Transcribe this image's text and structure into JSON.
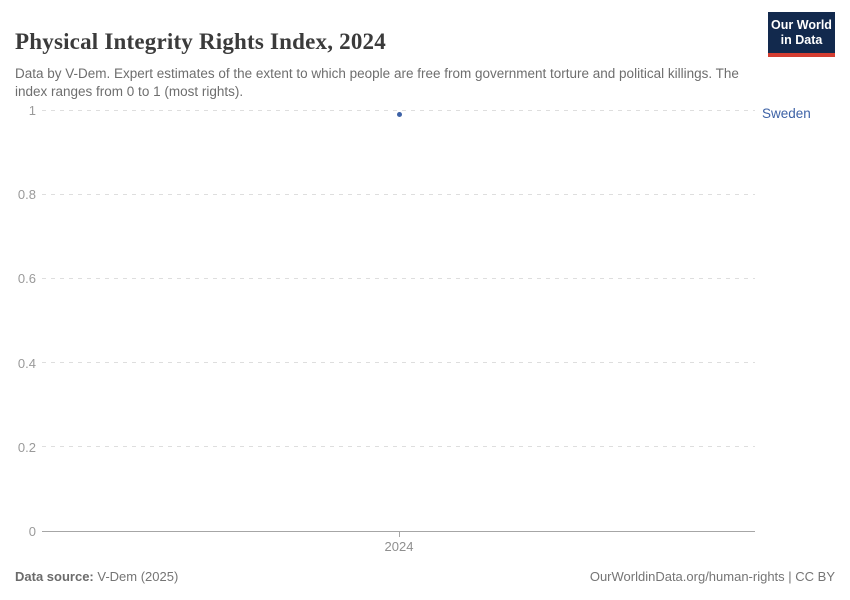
{
  "header": {
    "title": "Physical Integrity Rights Index, 2024",
    "subtitle": "Data by V-Dem. Expert estimates of the extent to which people are free from government torture and political killings. The index ranges from 0 to 1 (most rights).",
    "logo": {
      "line1": "Our World",
      "line2": "in Data",
      "bg_color": "#12294d",
      "accent_color": "#d43d31"
    }
  },
  "chart_data": {
    "type": "scatter",
    "title": "Physical Integrity Rights Index, 2024",
    "series": [
      {
        "name": "Sweden",
        "x": [
          2024
        ],
        "values": [
          0.99
        ],
        "color": "#3d62a6"
      }
    ],
    "x_ticks": [
      "2024"
    ],
    "y_ticks": [
      0,
      0.2,
      0.4,
      0.6,
      0.8,
      1
    ],
    "y_tick_labels": [
      "0",
      "0.2",
      "0.4",
      "0.6",
      "0.8",
      "1"
    ],
    "ylim": [
      0,
      1
    ],
    "xlabel": "",
    "ylabel": "",
    "grid": "horizontal-dashed",
    "legend_position": "right-entity-label",
    "colors": {
      "accent": "#3d62a6",
      "gridline": "#dedede",
      "axis": "#a6a6a6",
      "tick_text": "#8f8f8f"
    }
  },
  "footer": {
    "source_label": "Data source:",
    "source_value": " V-Dem (2025)",
    "credit": "OurWorldinData.org/human-rights | CC BY"
  }
}
